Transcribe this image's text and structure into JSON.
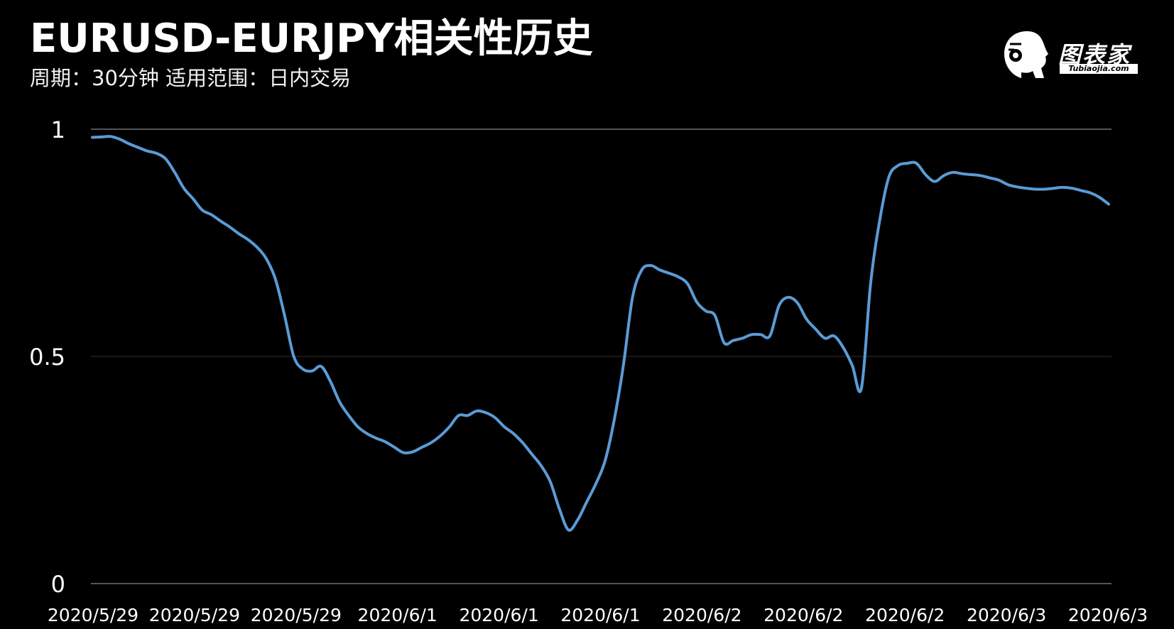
{
  "header": {
    "title": "EURUSD-EURJPY相关性历史",
    "subtitle": "周期：30分钟  适用范围：日内交易"
  },
  "logo": {
    "name": "图表家",
    "site": "Tubiaojia.com"
  },
  "colors": {
    "background": "#000000",
    "line": "#5b9bd5",
    "grid": "#555555"
  },
  "chart_data": {
    "type": "line",
    "title": "EURUSD-EURJPY相关性历史",
    "subtitle": "周期：30分钟  适用范围：日内交易",
    "xlabel": "",
    "ylabel": "",
    "ylim": [
      0,
      1
    ],
    "yticks": [
      "0",
      "0.5",
      "1"
    ],
    "xticks": [
      "2020/5/29",
      "2020/5/29",
      "2020/5/29",
      "2020/6/1",
      "2020/6/1",
      "2020/6/1",
      "2020/6/2",
      "2020/6/2",
      "2020/6/2",
      "2020/6/3",
      "2020/6/3"
    ],
    "grid": true,
    "series": [
      {
        "values": [
          0.982,
          0.983,
          0.984,
          0.978,
          0.968,
          0.96,
          0.952,
          0.947,
          0.935,
          0.905,
          0.87,
          0.847,
          0.822,
          0.812,
          0.798,
          0.785,
          0.77,
          0.757,
          0.74,
          0.715,
          0.67,
          0.59,
          0.5,
          0.472,
          0.468,
          0.478,
          0.445,
          0.4,
          0.37,
          0.345,
          0.33,
          0.32,
          0.312,
          0.3,
          0.288,
          0.29,
          0.3,
          0.31,
          0.325,
          0.345,
          0.37,
          0.37,
          0.38,
          0.376,
          0.365,
          0.345,
          0.33,
          0.31,
          0.285,
          0.26,
          0.225,
          0.165,
          0.118,
          0.14,
          0.18,
          0.22,
          0.27,
          0.36,
          0.48,
          0.63,
          0.69,
          0.7,
          0.69,
          0.683,
          0.675,
          0.66,
          0.62,
          0.6,
          0.59,
          0.53,
          0.535,
          0.54,
          0.548,
          0.548,
          0.545,
          0.612,
          0.63,
          0.618,
          0.582,
          0.56,
          0.54,
          0.545,
          0.52,
          0.48,
          0.43,
          0.66,
          0.8,
          0.895,
          0.92,
          0.925,
          0.925,
          0.9,
          0.885,
          0.898,
          0.905,
          0.902,
          0.9,
          0.898,
          0.893,
          0.888,
          0.878,
          0.873,
          0.87,
          0.868,
          0.868,
          0.87,
          0.872,
          0.87,
          0.865,
          0.86,
          0.85,
          0.835
        ]
      }
    ]
  }
}
